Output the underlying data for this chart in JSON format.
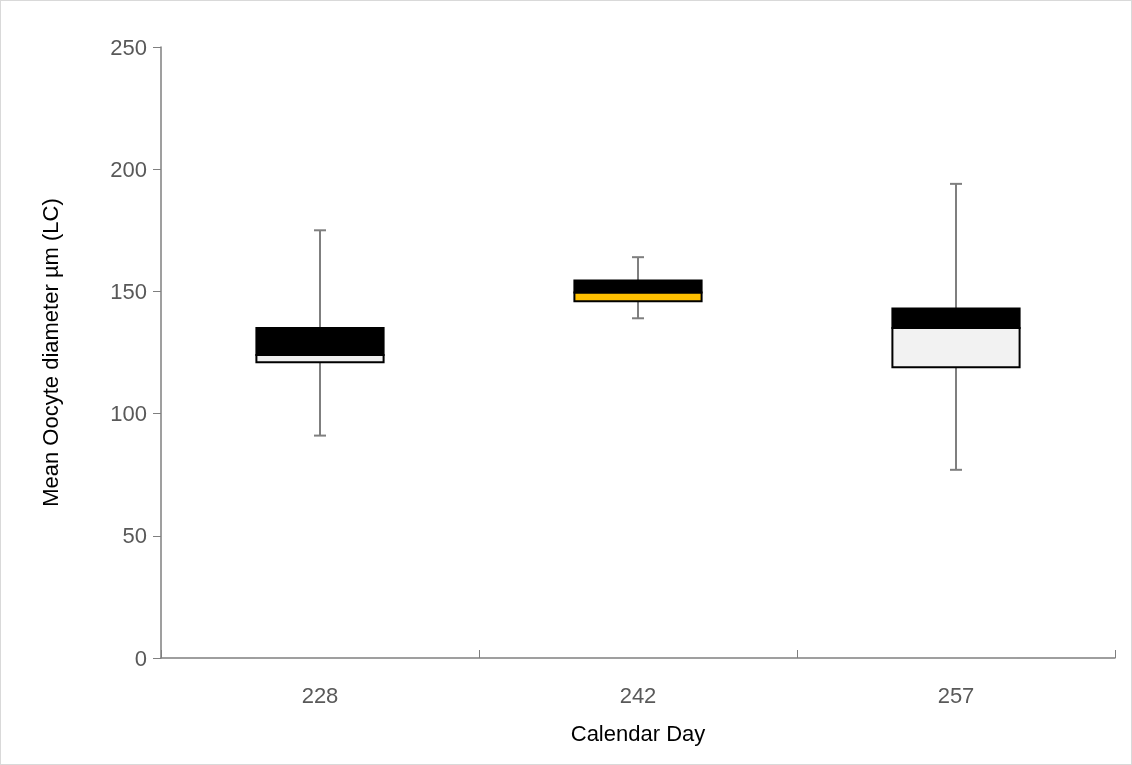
{
  "chart_data": {
    "type": "box",
    "xlabel": "Calendar Day",
    "ylabel": "Mean Oocyte diameter µm (LC)",
    "categories": [
      "228",
      "242",
      "257"
    ],
    "ylim": [
      0,
      250
    ],
    "yticks": [
      0,
      50,
      100,
      150,
      200,
      250
    ],
    "series": [
      {
        "color": "#000000",
        "colors": [
          "#efefef",
          "#ffc000",
          "#f2f2f2"
        ],
        "boxes": [
          {
            "low": 91,
            "q1": 121,
            "median": 124,
            "q3": 135,
            "high": 175
          },
          {
            "low": 139,
            "q1": 146,
            "median": 149.5,
            "q3": 154.5,
            "high": 164
          },
          {
            "low": 77,
            "q1": 119,
            "median": 135,
            "q3": 143,
            "high": 194
          }
        ]
      }
    ]
  }
}
